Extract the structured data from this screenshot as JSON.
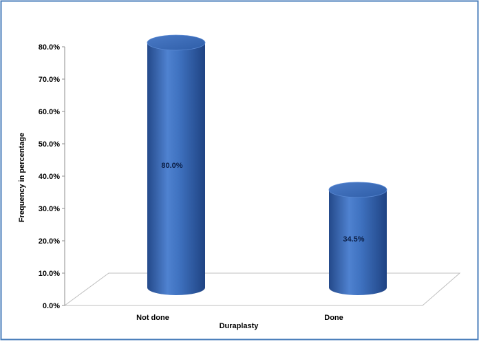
{
  "chart_data": {
    "type": "bar",
    "style": "3d-cylinder",
    "categories": [
      "Not done",
      "Done"
    ],
    "values": [
      80.0,
      34.5
    ],
    "data_labels": [
      "80.0%",
      "34.5%"
    ],
    "xlabel": "Duraplasty",
    "ylabel": "Frequency in percentage",
    "ylim": [
      0,
      80
    ],
    "yticks": [
      "0.0%",
      "10.0%",
      "20.0%",
      "30.0%",
      "40.0%",
      "50.0%",
      "60.0%",
      "70.0%",
      "80.0%"
    ],
    "grid": false,
    "legend": "none",
    "colors": {
      "bar": "#3f72c0",
      "bar_dark": "#24498a",
      "bar_light": "#6f9be0",
      "border": "#4a7ebb"
    }
  }
}
